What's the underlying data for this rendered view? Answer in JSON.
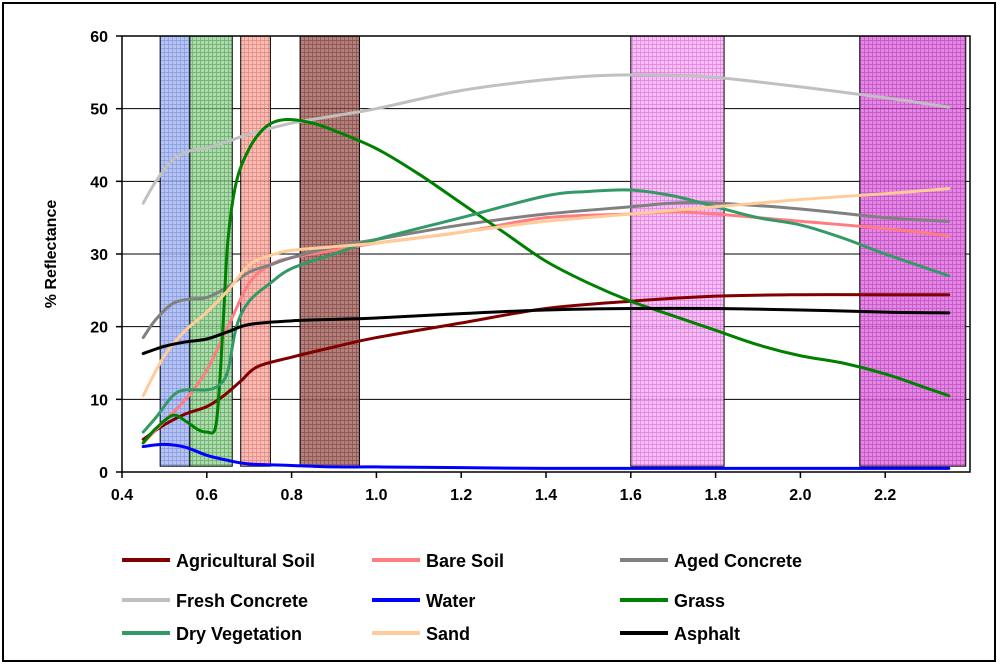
{
  "chart_data": {
    "type": "line",
    "title": "",
    "xlabel": "",
    "ylabel": "% Reflectance",
    "xlim": [
      0.4,
      2.4
    ],
    "ylim": [
      0,
      60
    ],
    "x_ticks": [
      "0.4",
      "0.6",
      "0.8",
      "1.0",
      "1.2",
      "1.4",
      "1.6",
      "1.8",
      "2.0",
      "2.2"
    ],
    "y_ticks": [
      "0",
      "10",
      "20",
      "30",
      "40",
      "50",
      "60"
    ],
    "grid": "horizontal",
    "legend_position": "bottom",
    "bands": [
      {
        "x0": 0.49,
        "x1": 0.56,
        "color": "#aab8ee",
        "hatch": "#5a78d8"
      },
      {
        "x0": 0.56,
        "x1": 0.66,
        "color": "#9ed39e",
        "hatch": "#2e8b2e"
      },
      {
        "x0": 0.68,
        "x1": 0.75,
        "color": "#f6b0a8",
        "hatch": "#d95a4a"
      },
      {
        "x0": 0.82,
        "x1": 0.96,
        "color": "#a86a64",
        "hatch": "#5c1f1a"
      },
      {
        "x0": 1.6,
        "x1": 1.82,
        "color": "#f3b6f3",
        "hatch": "#d24bd2"
      },
      {
        "x0": 2.14,
        "x1": 2.39,
        "color": "#e070e0",
        "hatch": "#a020a0"
      }
    ],
    "series": [
      {
        "name": "Agricultural Soil",
        "color": "#800000",
        "points": [
          [
            0.45,
            4.5
          ],
          [
            0.5,
            6.5
          ],
          [
            0.55,
            8
          ],
          [
            0.6,
            9
          ],
          [
            0.64,
            10.5
          ],
          [
            0.68,
            12.5
          ],
          [
            0.72,
            14.5
          ],
          [
            0.8,
            15.8
          ],
          [
            0.9,
            17.2
          ],
          [
            1.0,
            18.5
          ],
          [
            1.2,
            20.5
          ],
          [
            1.4,
            22.5
          ],
          [
            1.6,
            23.5
          ],
          [
            1.8,
            24.2
          ],
          [
            2.0,
            24.4
          ],
          [
            2.2,
            24.4
          ],
          [
            2.35,
            24.4
          ]
        ]
      },
      {
        "name": "Bare Soil",
        "color": "#ff7c80",
        "points": [
          [
            0.45,
            4
          ],
          [
            0.5,
            7
          ],
          [
            0.55,
            10
          ],
          [
            0.6,
            14
          ],
          [
            0.65,
            20
          ],
          [
            0.7,
            26
          ],
          [
            0.75,
            28.5
          ],
          [
            0.8,
            29.5
          ],
          [
            0.9,
            30.5
          ],
          [
            1.0,
            31.5
          ],
          [
            1.2,
            33
          ],
          [
            1.4,
            35
          ],
          [
            1.6,
            35.5
          ],
          [
            1.7,
            35.8
          ],
          [
            1.8,
            35.5
          ],
          [
            2.0,
            34.5
          ],
          [
            2.2,
            33.5
          ],
          [
            2.35,
            32.5
          ]
        ]
      },
      {
        "name": "Aged Concrete",
        "color": "#808080",
        "points": [
          [
            0.45,
            18.5
          ],
          [
            0.48,
            21
          ],
          [
            0.52,
            23.2
          ],
          [
            0.56,
            23.8
          ],
          [
            0.6,
            24
          ],
          [
            0.65,
            25.5
          ],
          [
            0.7,
            27.5
          ],
          [
            0.75,
            28.5
          ],
          [
            0.8,
            29.5
          ],
          [
            0.9,
            31
          ],
          [
            1.0,
            32
          ],
          [
            1.2,
            34
          ],
          [
            1.4,
            35.5
          ],
          [
            1.6,
            36.5
          ],
          [
            1.7,
            37
          ],
          [
            1.8,
            37
          ],
          [
            2.0,
            36.2
          ],
          [
            2.2,
            35
          ],
          [
            2.35,
            34.5
          ]
        ]
      },
      {
        "name": "Fresh Concrete",
        "color": "#c0c0c0",
        "points": [
          [
            0.45,
            37
          ],
          [
            0.48,
            40
          ],
          [
            0.52,
            43
          ],
          [
            0.56,
            44.2
          ],
          [
            0.6,
            44.6
          ],
          [
            0.65,
            45.5
          ],
          [
            0.7,
            46.5
          ],
          [
            0.8,
            48
          ],
          [
            0.9,
            49
          ],
          [
            1.0,
            50
          ],
          [
            1.2,
            52.5
          ],
          [
            1.4,
            54
          ],
          [
            1.55,
            54.6
          ],
          [
            1.7,
            54.6
          ],
          [
            1.8,
            54.3
          ],
          [
            2.0,
            53
          ],
          [
            2.2,
            51.5
          ],
          [
            2.35,
            50.2
          ]
        ]
      },
      {
        "name": "Water",
        "color": "#0000ff",
        "points": [
          [
            0.45,
            3.5
          ],
          [
            0.5,
            3.8
          ],
          [
            0.55,
            3.4
          ],
          [
            0.6,
            2.3
          ],
          [
            0.65,
            1.6
          ],
          [
            0.7,
            1.1
          ],
          [
            0.8,
            0.9
          ],
          [
            0.9,
            0.7
          ],
          [
            1.0,
            0.7
          ],
          [
            1.2,
            0.6
          ],
          [
            1.4,
            0.5
          ],
          [
            1.6,
            0.5
          ],
          [
            1.8,
            0.5
          ],
          [
            2.0,
            0.5
          ],
          [
            2.2,
            0.5
          ],
          [
            2.35,
            0.5
          ]
        ]
      },
      {
        "name": "Grass",
        "color": "#008000",
        "points": [
          [
            0.45,
            4
          ],
          [
            0.48,
            6
          ],
          [
            0.52,
            7.8
          ],
          [
            0.55,
            7
          ],
          [
            0.58,
            5.8
          ],
          [
            0.6,
            5.5
          ],
          [
            0.62,
            6
          ],
          [
            0.63,
            12
          ],
          [
            0.64,
            22
          ],
          [
            0.65,
            32
          ],
          [
            0.67,
            40
          ],
          [
            0.7,
            44.5
          ],
          [
            0.73,
            47
          ],
          [
            0.76,
            48.2
          ],
          [
            0.8,
            48.5
          ],
          [
            0.85,
            48
          ],
          [
            0.9,
            47
          ],
          [
            1.0,
            44.5
          ],
          [
            1.1,
            41
          ],
          [
            1.2,
            37
          ],
          [
            1.3,
            33
          ],
          [
            1.4,
            29
          ],
          [
            1.5,
            26
          ],
          [
            1.6,
            23.5
          ],
          [
            1.7,
            21.5
          ],
          [
            1.8,
            19.5
          ],
          [
            1.9,
            17.5
          ],
          [
            2.0,
            16
          ],
          [
            2.1,
            15
          ],
          [
            2.2,
            13.5
          ],
          [
            2.3,
            11.5
          ],
          [
            2.35,
            10.5
          ]
        ]
      },
      {
        "name": "Dry Vegetation",
        "color": "#339966",
        "points": [
          [
            0.45,
            5.5
          ],
          [
            0.48,
            7.5
          ],
          [
            0.52,
            10.5
          ],
          [
            0.55,
            11.3
          ],
          [
            0.6,
            11.3
          ],
          [
            0.63,
            12
          ],
          [
            0.65,
            14
          ],
          [
            0.67,
            20
          ],
          [
            0.7,
            23.5
          ],
          [
            0.75,
            26
          ],
          [
            0.8,
            28
          ],
          [
            0.9,
            30
          ],
          [
            1.0,
            32
          ],
          [
            1.2,
            35
          ],
          [
            1.4,
            38
          ],
          [
            1.5,
            38.6
          ],
          [
            1.6,
            38.8
          ],
          [
            1.7,
            38
          ],
          [
            1.8,
            36.5
          ],
          [
            1.9,
            35
          ],
          [
            2.0,
            34
          ],
          [
            2.1,
            32.2
          ],
          [
            2.2,
            30
          ],
          [
            2.35,
            27
          ]
        ]
      },
      {
        "name": "Sand",
        "color": "#ffcc99",
        "points": [
          [
            0.45,
            10.5
          ],
          [
            0.5,
            16
          ],
          [
            0.55,
            19.5
          ],
          [
            0.6,
            22
          ],
          [
            0.65,
            25
          ],
          [
            0.7,
            28.5
          ],
          [
            0.75,
            29.8
          ],
          [
            0.8,
            30.5
          ],
          [
            0.9,
            31
          ],
          [
            1.0,
            31.5
          ],
          [
            1.2,
            33
          ],
          [
            1.4,
            34.5
          ],
          [
            1.6,
            35.5
          ],
          [
            1.8,
            36.5
          ],
          [
            2.0,
            37.5
          ],
          [
            2.2,
            38.3
          ],
          [
            2.35,
            39
          ]
        ]
      },
      {
        "name": "Asphalt",
        "color": "#000000",
        "points": [
          [
            0.45,
            16.3
          ],
          [
            0.5,
            17.3
          ],
          [
            0.55,
            17.9
          ],
          [
            0.6,
            18.3
          ],
          [
            0.65,
            19.3
          ],
          [
            0.7,
            20.3
          ],
          [
            0.8,
            20.8
          ],
          [
            0.9,
            21
          ],
          [
            1.0,
            21.2
          ],
          [
            1.2,
            21.8
          ],
          [
            1.4,
            22.3
          ],
          [
            1.6,
            22.5
          ],
          [
            1.8,
            22.5
          ],
          [
            2.0,
            22.3
          ],
          [
            2.2,
            22
          ],
          [
            2.35,
            21.9
          ]
        ]
      }
    ]
  }
}
